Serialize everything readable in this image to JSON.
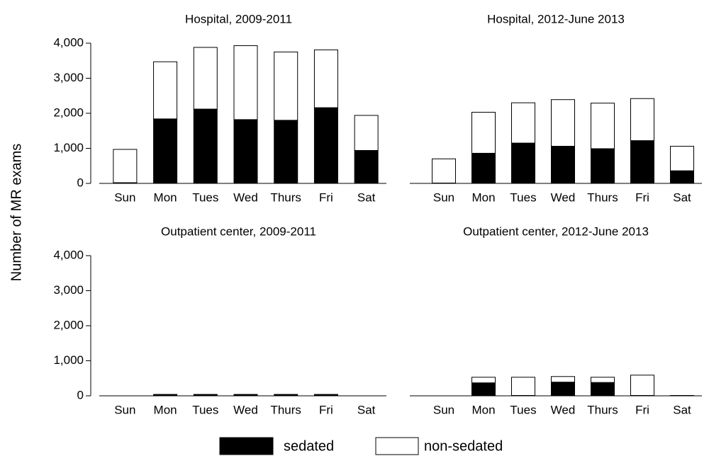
{
  "y_label": "Number of MR exams",
  "chart_data": [
    {
      "type": "bar",
      "stacked": true,
      "title": "Hospital, 2009-2011",
      "categories": [
        "Sun",
        "Mon",
        "Tues",
        "Wed",
        "Thurs",
        "Fri",
        "Sat"
      ],
      "series": [
        {
          "name": "sedated",
          "color": "#000000",
          "values": [
            20,
            1840,
            2120,
            1820,
            1800,
            2160,
            940
          ]
        },
        {
          "name": "non-sedated",
          "color": "#ffffff",
          "values": [
            950,
            1630,
            1760,
            2110,
            1950,
            1650,
            1000
          ]
        }
      ],
      "ylim": [
        0,
        4400
      ],
      "yticks": [
        0,
        {
          "value": 1000,
          "label": "1,000"
        },
        {
          "value": 2000,
          "label": "2,000"
        },
        {
          "value": 3000,
          "label": "3,000"
        },
        {
          "value": 4000,
          "label": "4,000"
        }
      ]
    },
    {
      "type": "bar",
      "stacked": true,
      "title": "Hospital, 2012-June 2013",
      "categories": [
        "Sun",
        "Mon",
        "Tues",
        "Wed",
        "Thurs",
        "Fri",
        "Sat"
      ],
      "series": [
        {
          "name": "sedated",
          "color": "#000000",
          "values": [
            10,
            860,
            1150,
            1060,
            990,
            1220,
            360
          ]
        },
        {
          "name": "non-sedated",
          "color": "#ffffff",
          "values": [
            690,
            1170,
            1150,
            1330,
            1300,
            1200,
            700
          ]
        }
      ],
      "ylim": [
        0,
        4400
      ]
    },
    {
      "type": "bar",
      "stacked": true,
      "title": "Outpatient center, 2009-2011",
      "categories": [
        "Sun",
        "Mon",
        "Tues",
        "Wed",
        "Thurs",
        "Fri",
        "Sat"
      ],
      "series": [
        {
          "name": "sedated",
          "color": "#000000",
          "values": [
            0,
            40,
            40,
            40,
            40,
            40,
            0
          ]
        },
        {
          "name": "non-sedated",
          "color": "#ffffff",
          "values": [
            0,
            0,
            0,
            0,
            0,
            0,
            0
          ]
        }
      ],
      "ylim": [
        0,
        4400
      ],
      "yticks": [
        0,
        {
          "value": 1000,
          "label": "1,000"
        },
        {
          "value": 2000,
          "label": "2,000"
        },
        {
          "value": 3000,
          "label": "3,000"
        },
        {
          "value": 4000,
          "label": "4,000"
        }
      ]
    },
    {
      "type": "bar",
      "stacked": true,
      "title": "Outpatient center, 2012-June 2013",
      "categories": [
        "Sun",
        "Mon",
        "Tues",
        "Wed",
        "Thurs",
        "Fri",
        "Sat"
      ],
      "series": [
        {
          "name": "sedated",
          "color": "#000000",
          "values": [
            0,
            370,
            10,
            390,
            380,
            10,
            10
          ]
        },
        {
          "name": "non-sedated",
          "color": "#ffffff",
          "values": [
            0,
            160,
            520,
            160,
            150,
            580,
            0
          ]
        }
      ],
      "ylim": [
        0,
        4400
      ]
    }
  ]
}
